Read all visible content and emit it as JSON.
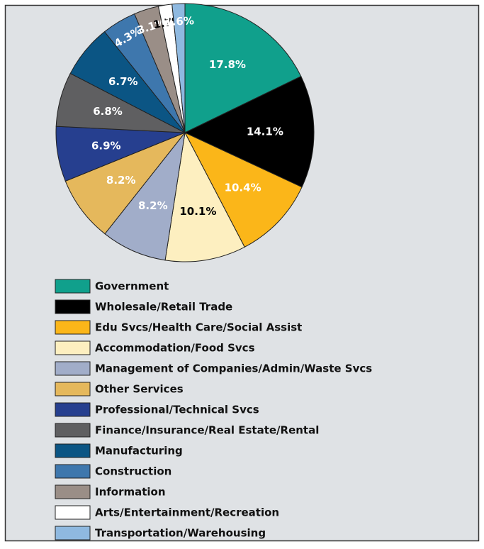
{
  "chart_data": {
    "type": "pie",
    "categories": [
      "Government",
      "Wholesale/Retail Trade",
      "Edu Svcs/Health Care/Social Assist",
      "Accommodation/Food Svcs",
      "Management of Companies/Admin/Waste Svcs",
      "Other Services",
      "Professional/Technical Svcs",
      "Finance/Insurance/Real Estate/Rental",
      "Manufacturing",
      "Construction",
      "Information",
      "Arts/Entertainment/Recreation",
      "Transportation/Warehousing"
    ],
    "values": [
      17.8,
      14.1,
      10.4,
      10.1,
      8.2,
      8.2,
      6.9,
      6.8,
      6.7,
      4.3,
      3.1,
      1.7,
      1.6
    ],
    "value_labels": [
      "17.8%",
      "14.1%",
      "10.4%",
      "10.1%",
      "8.2%",
      "8.2%",
      "6.9%",
      "6.8%",
      "6.7%",
      "4.3%",
      "3.1%",
      "1.7%",
      "1.6%"
    ],
    "colors": [
      "#10a08c",
      "#000000",
      "#fbb619",
      "#fdefc0",
      "#a1adc9",
      "#e5b85c",
      "#263f8f",
      "#5f5f61",
      "#0b5584",
      "#3e77ad",
      "#9a8e87",
      "#ffffff",
      "#8fb9e0"
    ]
  }
}
